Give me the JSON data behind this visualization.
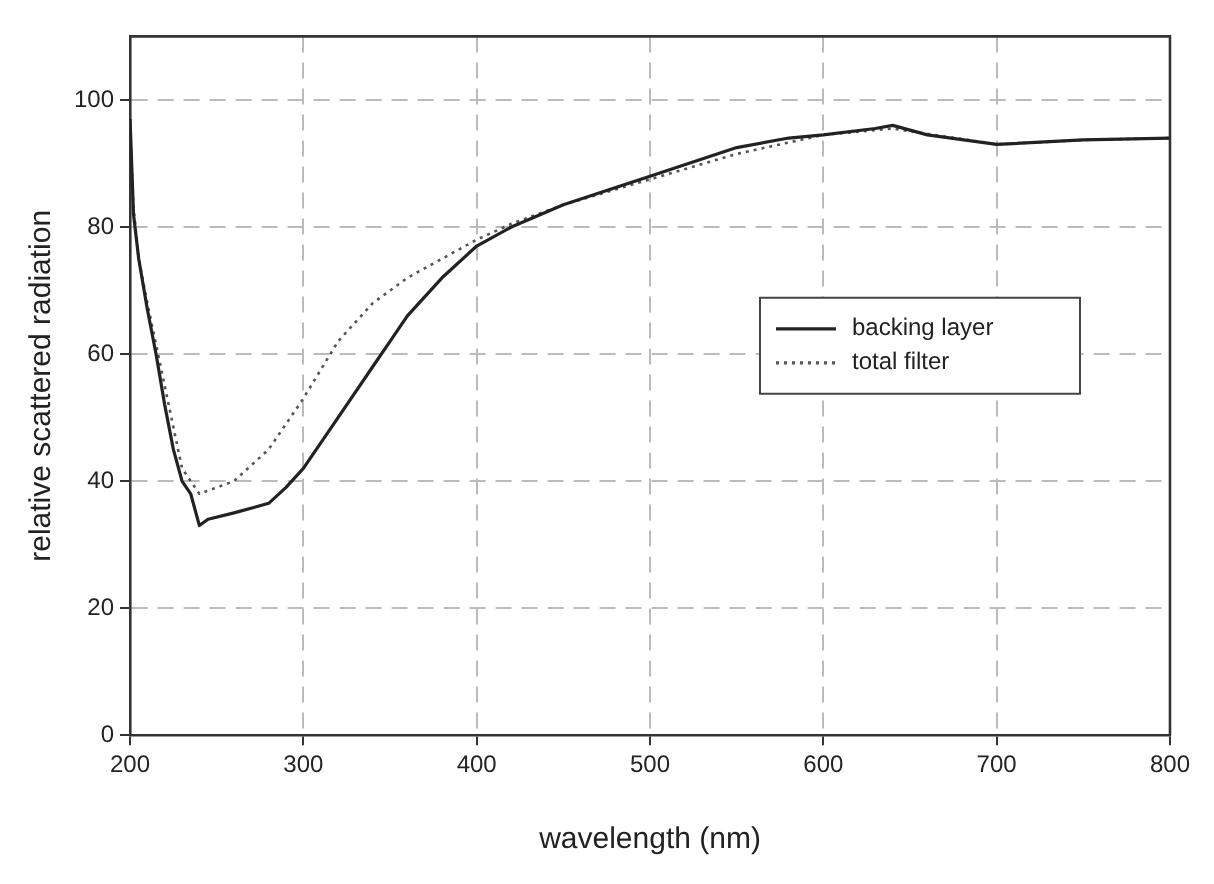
{
  "chart_data": {
    "type": "line",
    "xlabel": "wavelength (nm)",
    "ylabel": "relative scattered radiation",
    "xlim": [
      200,
      800
    ],
    "xticks": [
      200,
      300,
      400,
      500,
      600,
      700,
      800
    ],
    "ylim": [
      0,
      110
    ],
    "yticks": [
      0,
      20,
      40,
      60,
      80,
      100
    ],
    "grid": true,
    "legend": "right",
    "marker": "none",
    "series": [
      {
        "name": "backing layer",
        "color": "#222222",
        "line_style": "solid",
        "x": [
          200,
          202,
          205,
          210,
          215,
          220,
          225,
          230,
          235,
          240,
          245,
          260,
          280,
          290,
          300,
          320,
          340,
          350,
          360,
          380,
          400,
          420,
          450,
          500,
          550,
          580,
          600,
          630,
          640,
          660,
          700,
          750,
          800
        ],
        "values": [
          97,
          82,
          75,
          67,
          60,
          52,
          45,
          40,
          38,
          33,
          34,
          35,
          36.5,
          39,
          42,
          50,
          58,
          62,
          66,
          72,
          77,
          80,
          83.5,
          88,
          92.5,
          94,
          94.5,
          95.5,
          96,
          94.5,
          93,
          93.7,
          94
        ]
      },
      {
        "name": "total filter",
        "color": "#555555",
        "line_style": "dotted",
        "x": [
          200,
          202,
          205,
          210,
          220,
          230,
          240,
          260,
          280,
          300,
          320,
          340,
          360,
          380,
          400,
          420,
          450,
          500,
          550,
          600,
          640,
          700,
          750,
          800
        ],
        "values": [
          96,
          83,
          75,
          68,
          55,
          42,
          38,
          40,
          45,
          53,
          62,
          68,
          72,
          75,
          78,
          80.5,
          83.5,
          87.5,
          91.5,
          94.5,
          95.5,
          93,
          93.7,
          94
        ]
      }
    ]
  }
}
